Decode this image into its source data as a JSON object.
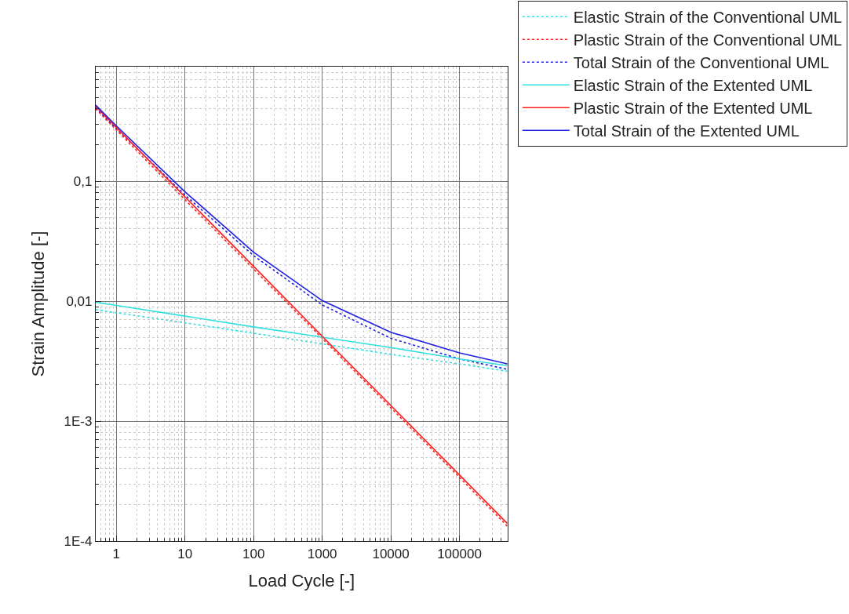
{
  "chart_data": {
    "type": "line",
    "xlabel": "Load Cycle [-]",
    "ylabel": "Strain Amplitude [-]",
    "log": "xy",
    "grid": true,
    "legend": "top right",
    "marker": "none",
    "x": [
      0.5,
      1,
      10,
      100,
      1000,
      10000,
      100000,
      500000
    ],
    "xlim": [
      0.5,
      500000
    ],
    "xticks": [
      1,
      10,
      100,
      1000,
      10000,
      100000
    ],
    "ylim": [
      0.0001,
      0.9
    ],
    "yticks": [
      {
        "value": 0.0001,
        "label": "1E-4"
      },
      {
        "value": 0.001,
        "label": "1E-3"
      },
      {
        "value": 0.01,
        "label": "0,01"
      },
      {
        "value": 0.1,
        "label": "0,1"
      }
    ],
    "series": [
      {
        "name": "Elastic Strain of the Conventional UML",
        "color": "#33e0e0",
        "line_style": "dotted",
        "values": [
          0.0085,
          0.008,
          0.0066,
          0.0054,
          0.0044,
          0.0036,
          0.003,
          0.0026
        ]
      },
      {
        "name": "Plastic Strain of the Conventional UML",
        "color": "#ff2020",
        "line_style": "dotted",
        "values": [
          0.4,
          0.267,
          0.07,
          0.0185,
          0.0049,
          0.00129,
          0.00034,
          0.000133
        ]
      },
      {
        "name": "Total Strain of the Conventional UML",
        "color": "#2020e0",
        "line_style": "dotted",
        "values": [
          0.4085,
          0.275,
          0.0766,
          0.0239,
          0.0093,
          0.0049,
          0.0033,
          0.0027
        ]
      },
      {
        "name": "Elastic Strain of the Extented UML",
        "color": "#33e0e0",
        "line_style": "solid",
        "values": [
          0.0098,
          0.0092,
          0.0075,
          0.0061,
          0.005,
          0.0041,
          0.0033,
          0.0029
        ]
      },
      {
        "name": "Plastic Strain of the Extented UML",
        "color": "#ff2020",
        "line_style": "solid",
        "values": [
          0.42,
          0.28,
          0.074,
          0.0195,
          0.0051,
          0.00135,
          0.000356,
          0.00014
        ]
      },
      {
        "name": "Total Strain of the Extented UML",
        "color": "#2020e0",
        "line_style": "solid",
        "values": [
          0.43,
          0.289,
          0.0815,
          0.0256,
          0.0101,
          0.0055,
          0.0037,
          0.003
        ]
      }
    ]
  }
}
